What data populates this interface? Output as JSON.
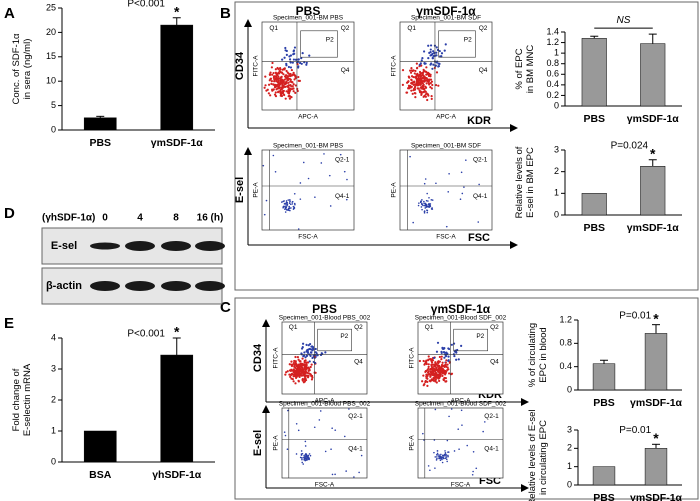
{
  "panels": [
    "A",
    "B",
    "C",
    "D",
    "E"
  ],
  "chart_data": [
    {
      "type": "bar",
      "ylabel": [
        "Conc. of SDF-1α",
        "in sera (ng/ml)"
      ],
      "categories": [
        "PBS",
        "γmSDF-1α"
      ],
      "values": [
        2.5,
        21.5
      ],
      "errors": [
        0.3,
        1.5
      ],
      "color": "#000000",
      "ylim": [
        0,
        25
      ],
      "yticks": [
        0,
        5,
        10,
        15,
        20,
        25
      ],
      "annotation": "P<0.001",
      "star": "*"
    },
    {
      "type": "bar",
      "ylabel": [
        "% of EPC",
        "in BM MNC"
      ],
      "categories": [
        "PBS",
        "γmSDF-1α"
      ],
      "values": [
        1.28,
        1.18
      ],
      "errors": [
        0.04,
        0.18
      ],
      "color": "#999999",
      "ylim": [
        0,
        1.4
      ],
      "yticks": [
        0,
        0.2,
        0.4,
        0.6,
        0.8,
        1,
        1.2,
        1.4
      ],
      "annotation": "NS",
      "bracket": true
    },
    {
      "type": "bar",
      "ylabel": [
        "Relative levels of",
        "E-sel in BM EPC"
      ],
      "categories": [
        "PBS",
        "γmSDF-1α"
      ],
      "values": [
        1,
        2.25
      ],
      "errors": [
        0,
        0.3
      ],
      "color": "#999999",
      "ylim": [
        0,
        3
      ],
      "yticks": [
        0,
        1,
        2,
        3
      ],
      "annotation": "P=0.024",
      "star": "*"
    },
    {
      "type": "bar",
      "ylabel": [
        "% of circulating",
        "EPC in blood"
      ],
      "categories": [
        "PBS",
        "γmSDF-1α"
      ],
      "values": [
        0.45,
        0.97
      ],
      "errors": [
        0.06,
        0.15
      ],
      "color": "#999999",
      "ylim": [
        0,
        1.2
      ],
      "yticks": [
        0,
        0.4,
        0.8,
        1.2
      ],
      "annotation": "P=0.01",
      "star": "*"
    },
    {
      "type": "bar",
      "ylabel": [
        "Relative levels of E-sel",
        "in circulating EPC"
      ],
      "categories": [
        "PBS",
        "γmSDF-1α"
      ],
      "values": [
        1,
        2.0
      ],
      "errors": [
        0,
        0.22
      ],
      "color": "#999999",
      "ylim": [
        0,
        3
      ],
      "yticks": [
        0,
        1,
        2,
        3
      ],
      "annotation": "P=0.01",
      "star": "*"
    },
    {
      "type": "bar",
      "ylabel": [
        "Fold change of",
        "E-selectin mRNA"
      ],
      "categories": [
        "BSA",
        "γhSDF-1α"
      ],
      "values": [
        1,
        3.45
      ],
      "errors": [
        0,
        0.55
      ],
      "color": "#000000",
      "ylim": [
        0,
        4
      ],
      "yticks": [
        0,
        1,
        2,
        3,
        4
      ],
      "annotation": "P<0.001",
      "star": "*"
    }
  ],
  "flow": {
    "B": {
      "columns": [
        "PBS",
        "γmSDF-1α"
      ],
      "axes": [
        "CD34",
        "KDR",
        "E-sel",
        "FSC"
      ],
      "plots": [
        {
          "specimen": "Specimen_001-BM PBS",
          "x": "APC-A",
          "y": "FITC-A",
          "gates": [
            "Q1",
            "Q2",
            "P2",
            "Q4"
          ]
        },
        {
          "specimen": "Specimen_001-BM SDF",
          "x": "APC-A",
          "y": "FITC-A",
          "gates": [
            "Q1",
            "Q2",
            "P2",
            "Q4"
          ]
        },
        {
          "specimen": "Specimen_001-BM PBS",
          "x": "FSC-A",
          "y": "PE-A",
          "gates": [
            "Q2-1",
            "Q4-1"
          ]
        },
        {
          "specimen": "Specimen_001-BM SDF",
          "x": "FSC-A",
          "y": "PE-A",
          "gates": [
            "Q2-1",
            "Q4-1"
          ]
        }
      ]
    },
    "C": {
      "columns": [
        "PBS",
        "γmSDF-1α"
      ],
      "axes": [
        "CD34",
        "KDR",
        "E-sel",
        "FSC"
      ],
      "plots": [
        {
          "specimen": "Specimen_001-Blood PBS_002",
          "x": "APC-A",
          "y": "FITC-A",
          "gates": [
            "Q1",
            "Q2",
            "P2",
            "Q4"
          ]
        },
        {
          "specimen": "Specimen_001-Blood SDF_002",
          "x": "APC-A",
          "y": "FITC-A",
          "gates": [
            "Q1",
            "Q2",
            "P2",
            "Q4"
          ]
        },
        {
          "specimen": "Specimen_001-Blood PBS_002",
          "x": "FSC-A",
          "y": "PE-A",
          "gates": [
            "Q2-1",
            "Q4-1"
          ]
        },
        {
          "specimen": "Specimen_001-Blood SDF_002",
          "x": "FSC-A",
          "y": "PE-A",
          "gates": [
            "Q2-1",
            "Q4-1"
          ]
        }
      ]
    }
  },
  "blot": {
    "treatment": "(γhSDF-1α)",
    "times": [
      "0",
      "4",
      "8",
      "16 (h)"
    ],
    "rows": [
      "E-sel",
      "β-actin"
    ]
  }
}
